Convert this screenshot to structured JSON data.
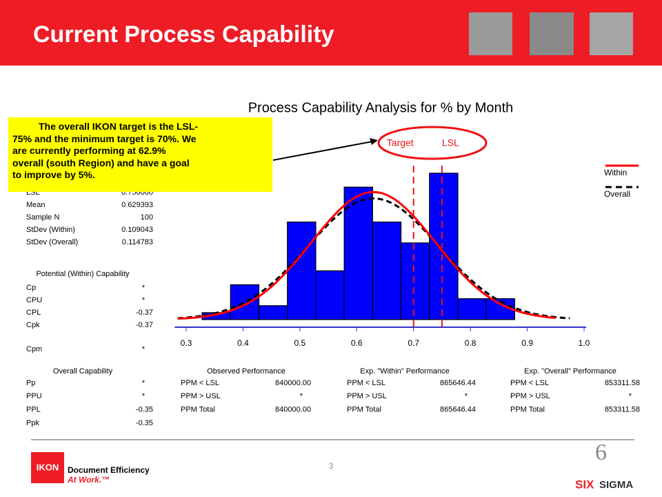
{
  "header": {
    "title": "Current Process Capability"
  },
  "callout": {
    "lines": [
      "The overall IKON target is the LSL-",
      "75% and the minimum target is 70%. We",
      "are currently performing at 62.9%",
      "overall (south Region) and have a goal",
      "to improve by 5%."
    ]
  },
  "chart_data": {
    "type": "histogram",
    "title": "Process Capability Analysis for % by Month",
    "bins": [
      0.328,
      0.378,
      0.428,
      0.478,
      0.528,
      0.578,
      0.628,
      0.678,
      0.728,
      0.778,
      0.828,
      0.878
    ],
    "values": [
      1,
      5,
      2,
      14,
      7,
      19,
      14,
      11,
      21,
      3,
      3
    ],
    "color": "#0000ff",
    "xlim": [
      0.28,
      1.0
    ],
    "xticks": [
      0.3,
      0.4,
      0.5,
      0.6,
      0.7,
      0.8,
      0.9,
      {
        "value": 1,
        "label": "1.0"
      }
    ],
    "reference_lines": [
      {
        "name": "Target",
        "value": 0.7
      },
      {
        "name": "LSL",
        "value": 0.75
      }
    ],
    "legend": [
      {
        "name": "Within",
        "color": "#ff0000"
      },
      {
        "name": "Overall",
        "color": "#000000"
      }
    ]
  },
  "stats": {
    "rows": [
      [
        "LSL",
        "0.750000"
      ],
      [
        "Mean",
        0.629393
      ],
      [
        "Sample N",
        100
      ],
      [
        "StDev (Within)",
        0.109043
      ],
      [
        "StDev (Overall)",
        0.114783
      ]
    ]
  },
  "potential": {
    "title": "Potential (Within) Capability",
    "rows": [
      [
        "Cp",
        "*"
      ],
      [
        "CPU",
        "*"
      ],
      [
        "CPL",
        "-0.37"
      ],
      [
        "Cpk",
        "-0.37"
      ],
      [
        "Cpm",
        "*"
      ]
    ]
  },
  "overall": {
    "title": "Overall Capability",
    "rows": [
      [
        "Pp",
        "*"
      ],
      [
        "PPU",
        "*"
      ],
      [
        "PPL",
        "-0.35"
      ],
      [
        "Ppk",
        "-0.35"
      ]
    ]
  },
  "observed": {
    "title": "Observed Performance",
    "rows": [
      [
        "PPM < LSL",
        "840000.00"
      ],
      [
        "PPM > USL",
        "*"
      ],
      [
        "PPM Total",
        "840000.00"
      ]
    ]
  },
  "exp_within": {
    "title": "Exp. \"Within\" Performance",
    "rows": [
      [
        "PPM < LSL",
        "865646.44"
      ],
      [
        "PPM > USL",
        "*"
      ],
      [
        "PPM Total",
        "865646.44"
      ]
    ]
  },
  "exp_overall": {
    "title": "Exp. \"Overall\" Performance",
    "rows": [
      [
        "PPM < LSL",
        "853311.58"
      ],
      [
        "PPM > USL",
        "*"
      ],
      [
        "PPM Total",
        "853311.58"
      ]
    ]
  },
  "footer": {
    "page": "3",
    "logo": "IKON",
    "tagline1": "Document Efficiency",
    "tagline2": "At Work.™",
    "six": "SIX",
    "sigma": "SIGMA"
  }
}
